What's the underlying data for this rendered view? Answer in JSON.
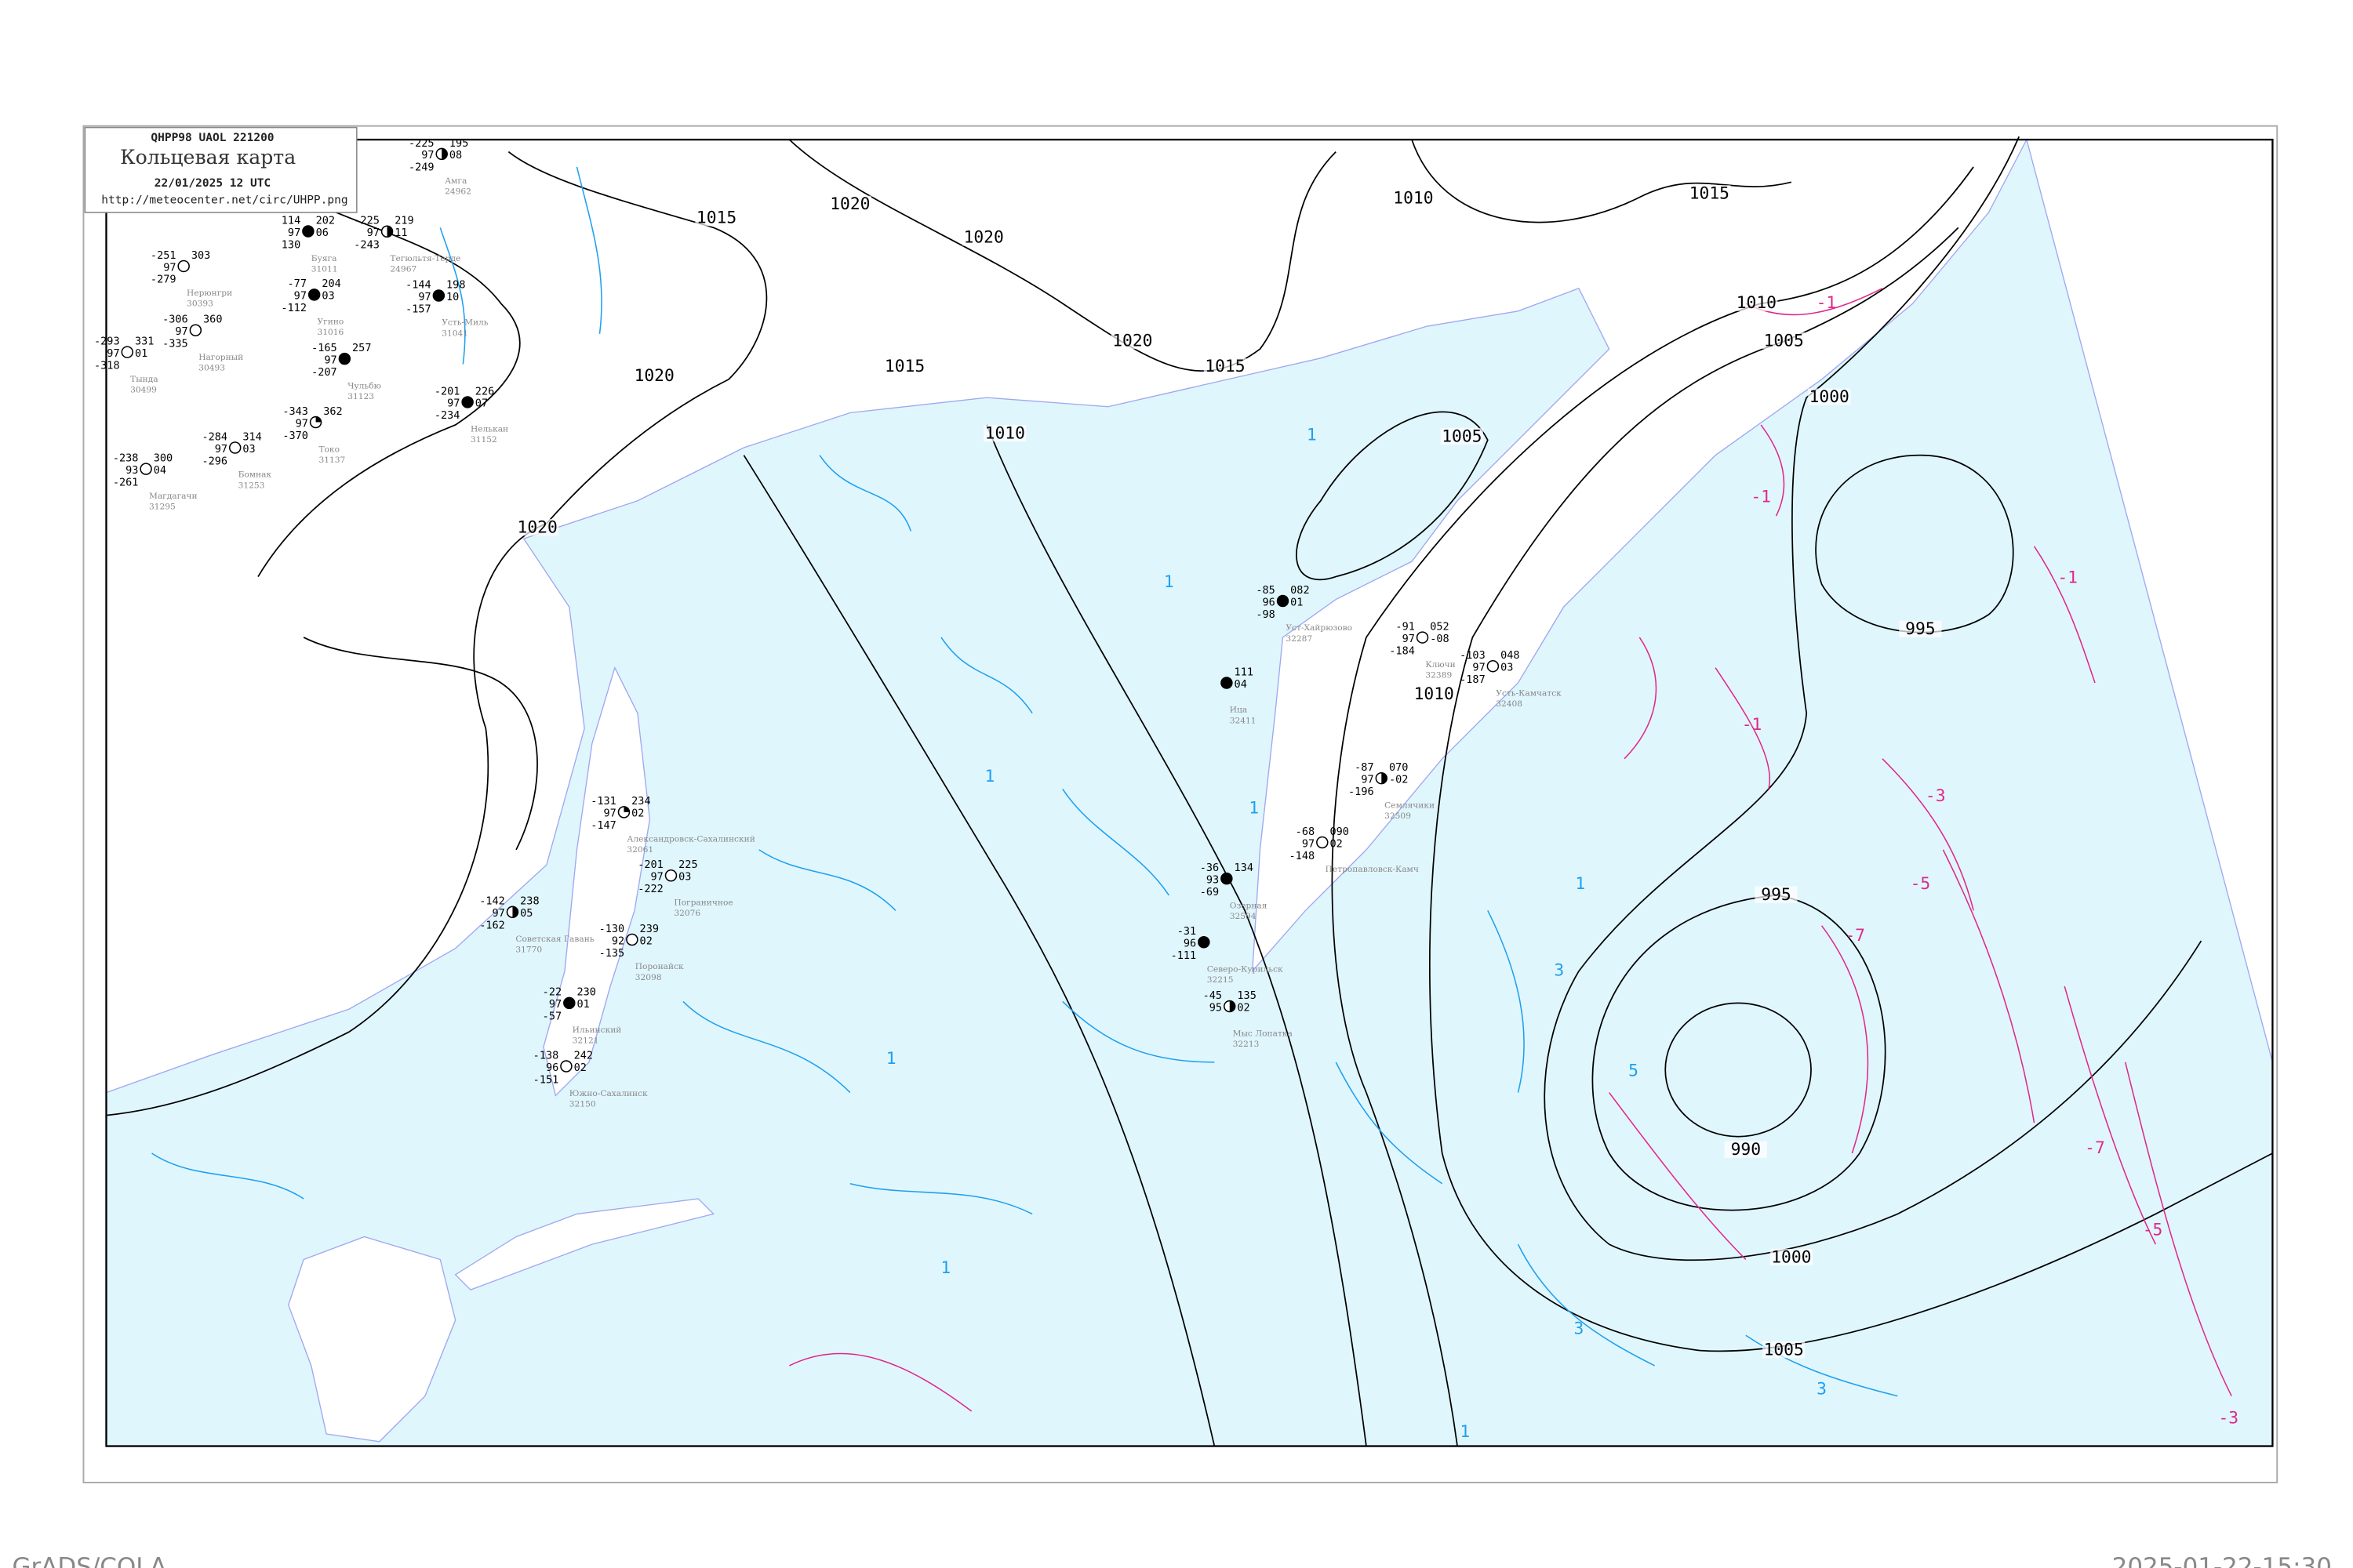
{
  "header": {
    "bulletin": "QHPP98  UAOL  221200",
    "title": "Кольцевая карта",
    "datetime": "22/01/2025 12 UTC",
    "url": "http://meteocenter.net/circ/UHPP.png"
  },
  "footer": {
    "software": "GrADS/COLA",
    "generated": "2025-01-22-15:30"
  },
  "colors": {
    "sea": "#e0f6fd",
    "isobar": "#000000",
    "negative_isotherm": "#e0288a",
    "positive_isotherm": "#1ea0f0",
    "coast": "#a0a8f0"
  },
  "isobar_labels": [
    "1020",
    "1020",
    "1020",
    "1020",
    "1020",
    "1015",
    "1015",
    "1015",
    "1015",
    "1010",
    "1010",
    "1010",
    "1010",
    "1005",
    "1005",
    "1005",
    "1000",
    "1000",
    "995",
    "995",
    "990"
  ],
  "isotherm_labels_negative": [
    "-1",
    "-1",
    "-1",
    "-1",
    "-3",
    "-3",
    "-5",
    "-5",
    "-7",
    "-7"
  ],
  "isotherm_labels_positive": [
    "1",
    "1",
    "1",
    "1",
    "1",
    "1",
    "1",
    "1",
    "3",
    "3",
    "3",
    "5"
  ],
  "stations": [
    {
      "name": "Буяга",
      "id": "31011",
      "t": "114",
      "vis": "97",
      "td": "130",
      "p": "202",
      "tend": "06",
      "cloud": "overcast"
    },
    {
      "name": "Угино",
      "id": "31016",
      "t": "-77",
      "vis": "97",
      "td": "-112",
      "p": "204",
      "tend": "03",
      "cloud": "overcast"
    },
    {
      "name": "Амга",
      "id": "24962",
      "t": "-225",
      "vis": "97",
      "td": "-249",
      "p": "195",
      "tend": "08",
      "cloud": "half"
    },
    {
      "name": "Тегюльтя-Терде",
      "id": "24967",
      "t": "-225",
      "vis": "97",
      "td": "-243",
      "p": "219",
      "tend": "11",
      "cloud": "half"
    },
    {
      "name": "Усть-Миль",
      "id": "31041",
      "t": "-144",
      "vis": "97",
      "td": "-157",
      "p": "198",
      "tend": "10",
      "cloud": "overcast"
    },
    {
      "name": "Нерюнгри",
      "id": "30393",
      "t": "-251",
      "vis": "97",
      "td": "-279",
      "p": "303",
      "tend": "",
      "cloud": "clear"
    },
    {
      "name": "Нагорный",
      "id": "30493",
      "t": "-306",
      "vis": "97",
      "td": "-335",
      "p": "360",
      "tend": "",
      "cloud": "clear"
    },
    {
      "name": "Тында",
      "id": "30499",
      "t": "-293",
      "vis": "97",
      "td": "-318",
      "p": "331",
      "tend": "01",
      "cloud": "clear"
    },
    {
      "name": "Чульбю",
      "id": "31123",
      "t": "-165",
      "vis": "97",
      "td": "-207",
      "p": "257",
      "tend": "",
      "cloud": "overcast"
    },
    {
      "name": "Токо",
      "id": "31137",
      "t": "-343",
      "vis": "97",
      "td": "-370",
      "p": "362",
      "tend": "",
      "cloud": "quarter"
    },
    {
      "name": "Нелькан",
      "id": "31152",
      "t": "-201",
      "vis": "97",
      "td": "-234",
      "p": "226",
      "tend": "07",
      "cloud": "overcast"
    },
    {
      "name": "Бомнак",
      "id": "31253",
      "t": "-284",
      "vis": "97",
      "td": "-296",
      "p": "314",
      "tend": "03",
      "cloud": "clear"
    },
    {
      "name": "Магдагачи",
      "id": "31295",
      "t": "-238",
      "vis": "93",
      "td": "-261",
      "p": "300",
      "tend": "04",
      "cloud": "clear"
    },
    {
      "name": "Уст-Хайрюзово",
      "id": "32287",
      "t": "-85",
      "vis": "96",
      "td": "-98",
      "p": "082",
      "tend": "01",
      "cloud": "overcast"
    },
    {
      "name": "Ключи",
      "id": "32389",
      "t": "-91",
      "vis": "97",
      "td": "-184",
      "p": "052",
      "tend": "-08",
      "cloud": "clear"
    },
    {
      "name": "Усть-Камчатск",
      "id": "32408",
      "t": "-103",
      "vis": "97",
      "td": "-187",
      "p": "048",
      "tend": "03",
      "cloud": "clear"
    },
    {
      "name": "Семлячики",
      "id": "32509",
      "t": "-87",
      "vis": "97",
      "td": "-196",
      "p": "070",
      "tend": "-02",
      "cloud": "half"
    },
    {
      "name": "Петропавловск-Камч",
      "id": "",
      "t": "-68",
      "vis": "97",
      "td": "-148",
      "p": "090",
      "tend": "02",
      "cloud": "clear"
    },
    {
      "name": "Ица",
      "id": "32411",
      "t": "",
      "vis": "",
      "td": "",
      "p": "111",
      "tend": "04",
      "cloud": "overcast"
    },
    {
      "name": "Озерная",
      "id": "32594",
      "t": "-36",
      "vis": "93",
      "td": "-69",
      "p": "134",
      "tend": "",
      "cloud": "overcast"
    },
    {
      "name": "Мыс Лопатка",
      "id": "32213",
      "t": "-45",
      "vis": "95",
      "td": "",
      "p": "135",
      "tend": "02",
      "cloud": "half"
    },
    {
      "name": "Северо-Курильск",
      "id": "32215",
      "t": "-31",
      "vis": "96",
      "td": "-111",
      "p": "",
      "tend": "",
      "cloud": "overcast"
    },
    {
      "name": "Александровск-Сахалинский",
      "id": "32061",
      "t": "-131",
      "vis": "97",
      "td": "-147",
      "p": "234",
      "tend": "02",
      "cloud": "quarter"
    },
    {
      "name": "Пограничное",
      "id": "32076",
      "t": "-201",
      "vis": "97",
      "td": "-222",
      "p": "225",
      "tend": "03",
      "cloud": "clear"
    },
    {
      "name": "Советская Гавань",
      "id": "31770",
      "t": "-142",
      "vis": "97",
      "td": "-162",
      "p": "238",
      "tend": "05",
      "cloud": "half"
    },
    {
      "name": "Поронайск",
      "id": "32098",
      "t": "-130",
      "vis": "92",
      "td": "-135",
      "p": "239",
      "tend": "02",
      "cloud": "clear"
    },
    {
      "name": "Ильинский",
      "id": "32121",
      "t": "-22",
      "vis": "97",
      "td": "-57",
      "p": "230",
      "tend": "01",
      "cloud": "overcast"
    },
    {
      "name": "Южно-Сахалинск",
      "id": "32150",
      "t": "-138",
      "vis": "96",
      "td": "-151",
      "p": "242",
      "tend": "02",
      "cloud": "clear"
    }
  ]
}
